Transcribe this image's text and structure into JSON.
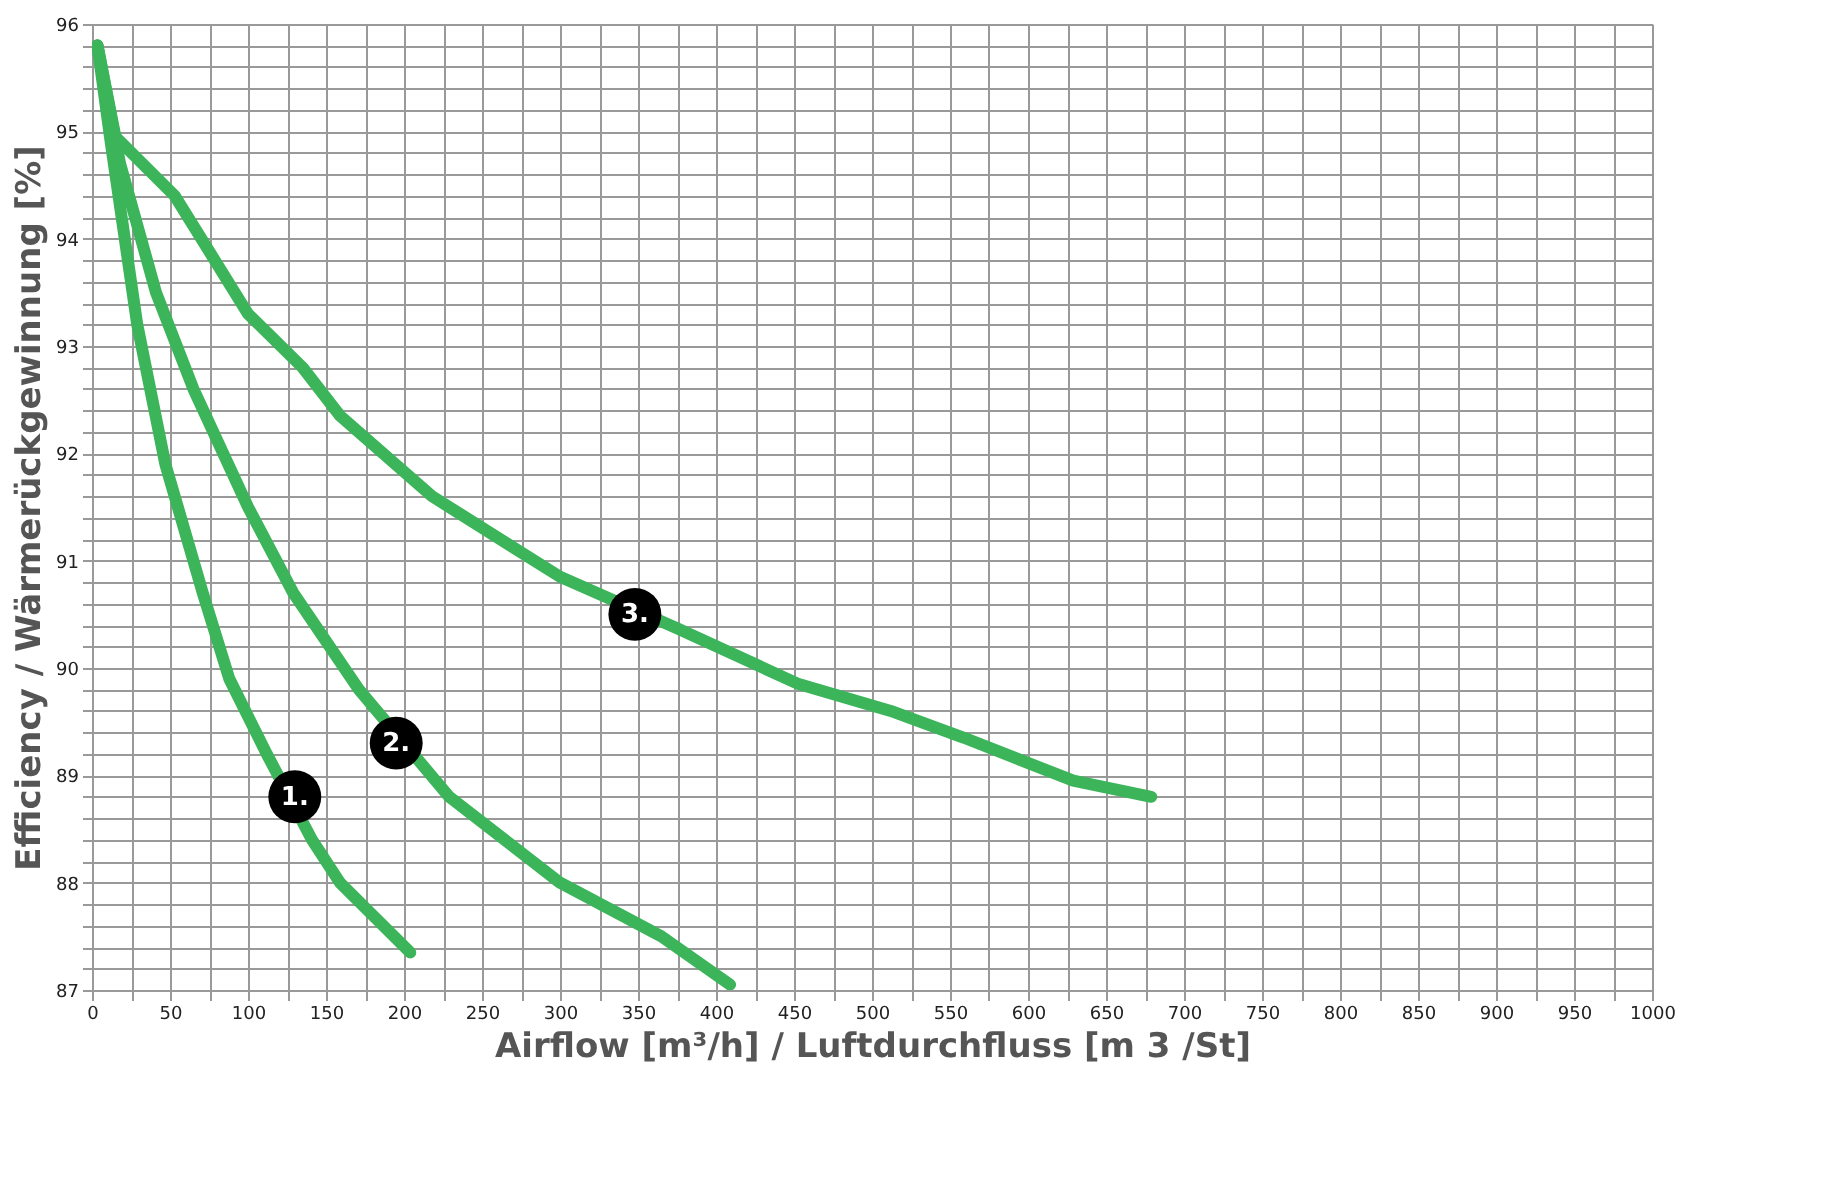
{
  "chart_data": {
    "type": "line",
    "xlabel": "Airflow [m³/h] / Luftdurchfluss [m 3 /St]",
    "ylabel": "Efficiency / Wärmerückgewinnung [%]",
    "series": [
      {
        "color": "#3cb55a",
        "x": [
          3.5,
          12,
          29,
          47,
          71,
          88,
          112,
          141,
          159,
          204
        ],
        "values": [
          95.8,
          94.9,
          93.2,
          91.9,
          90.7,
          89.9,
          89.2,
          88.4,
          88.0,
          87.35
        ]
      },
      {
        "color": "#3cb55a",
        "x": [
          3.5,
          18,
          41,
          65,
          100,
          129,
          171,
          229,
          300,
          365,
          409
        ],
        "values": [
          95.8,
          94.7,
          93.5,
          92.6,
          91.5,
          90.7,
          89.8,
          88.8,
          88.0,
          87.5,
          87.05
        ]
      },
      {
        "color": "#3cb55a",
        "x": [
          3.5,
          15,
          53,
          100,
          135,
          159,
          218,
          300,
          375,
          453,
          512,
          559,
          629,
          679
        ],
        "values": [
          95.8,
          94.95,
          94.4,
          93.3,
          92.8,
          92.35,
          91.6,
          90.85,
          90.37,
          89.85,
          89.6,
          89.35,
          88.95,
          88.8
        ]
      }
    ],
    "annotations": [
      {
        "text": "1.",
        "x": 130,
        "y": 88.8
      },
      {
        "text": "2.",
        "x": 195,
        "y": 89.3
      },
      {
        "text": "3.",
        "x": 348,
        "y": 90.5
      }
    ],
    "xlim": [
      0,
      1000
    ],
    "ylim": [
      87,
      96
    ],
    "xticks": [
      0,
      {
        "value": 25,
        "label": null
      },
      50,
      {
        "value": 75,
        "label": null
      },
      100,
      {
        "value": 125,
        "label": null
      },
      150,
      {
        "value": 175,
        "label": null
      },
      200,
      {
        "value": 225,
        "label": null
      },
      250,
      {
        "value": 275,
        "label": null
      },
      300,
      {
        "value": 325,
        "label": null
      },
      350,
      {
        "value": 375,
        "label": null
      },
      400,
      {
        "value": 425,
        "label": null
      },
      450,
      {
        "value": 475,
        "label": null
      },
      500,
      {
        "value": 525,
        "label": null
      },
      550,
      {
        "value": 575,
        "label": null
      },
      600,
      {
        "value": 625,
        "label": null
      },
      650,
      {
        "value": 675,
        "label": null
      },
      700,
      {
        "value": 725,
        "label": null
      },
      750,
      {
        "value": 775,
        "label": null
      },
      800,
      {
        "value": 825,
        "label": null
      },
      850,
      {
        "value": 875,
        "label": null
      },
      900,
      {
        "value": 925,
        "label": null
      },
      950,
      {
        "value": 975,
        "label": null
      },
      1000
    ],
    "yticks": [
      87,
      {
        "value": 87.2,
        "label": null
      },
      {
        "value": 87.4,
        "label": null
      },
      {
        "value": 87.6,
        "label": null
      },
      {
        "value": 87.8,
        "label": null
      },
      88,
      {
        "value": 88.2,
        "label": null
      },
      {
        "value": 88.4,
        "label": null
      },
      {
        "value": 88.6,
        "label": null
      },
      {
        "value": 88.8,
        "label": null
      },
      89,
      {
        "value": 89.2,
        "label": null
      },
      {
        "value": 89.4,
        "label": null
      },
      {
        "value": 89.6,
        "label": null
      },
      {
        "value": 89.8,
        "label": null
      },
      90,
      {
        "value": 90.2,
        "label": null
      },
      {
        "value": 90.4,
        "label": null
      },
      {
        "value": 90.6,
        "label": null
      },
      {
        "value": 90.8,
        "label": null
      },
      91,
      {
        "value": 91.2,
        "label": null
      },
      {
        "value": 91.4,
        "label": null
      },
      {
        "value": 91.6,
        "label": null
      },
      {
        "value": 91.8,
        "label": null
      },
      92,
      {
        "value": 92.2,
        "label": null
      },
      {
        "value": 92.4,
        "label": null
      },
      {
        "value": 92.6,
        "label": null
      },
      {
        "value": 92.8,
        "label": null
      },
      93,
      {
        "value": 93.2,
        "label": null
      },
      {
        "value": 93.4,
        "label": null
      },
      {
        "value": 93.6,
        "label": null
      },
      {
        "value": 93.8,
        "label": null
      },
      94,
      {
        "value": 94.2,
        "label": null
      },
      {
        "value": 94.4,
        "label": null
      },
      {
        "value": 94.6,
        "label": null
      },
      {
        "value": 94.8,
        "label": null
      },
      95,
      {
        "value": 95.2,
        "label": null
      },
      {
        "value": 95.4,
        "label": null
      },
      {
        "value": 95.6,
        "label": null
      },
      {
        "value": 95.8,
        "label": null
      },
      96
    ],
    "grid": true,
    "legend": false,
    "marker": "none",
    "line_style": "solid"
  }
}
